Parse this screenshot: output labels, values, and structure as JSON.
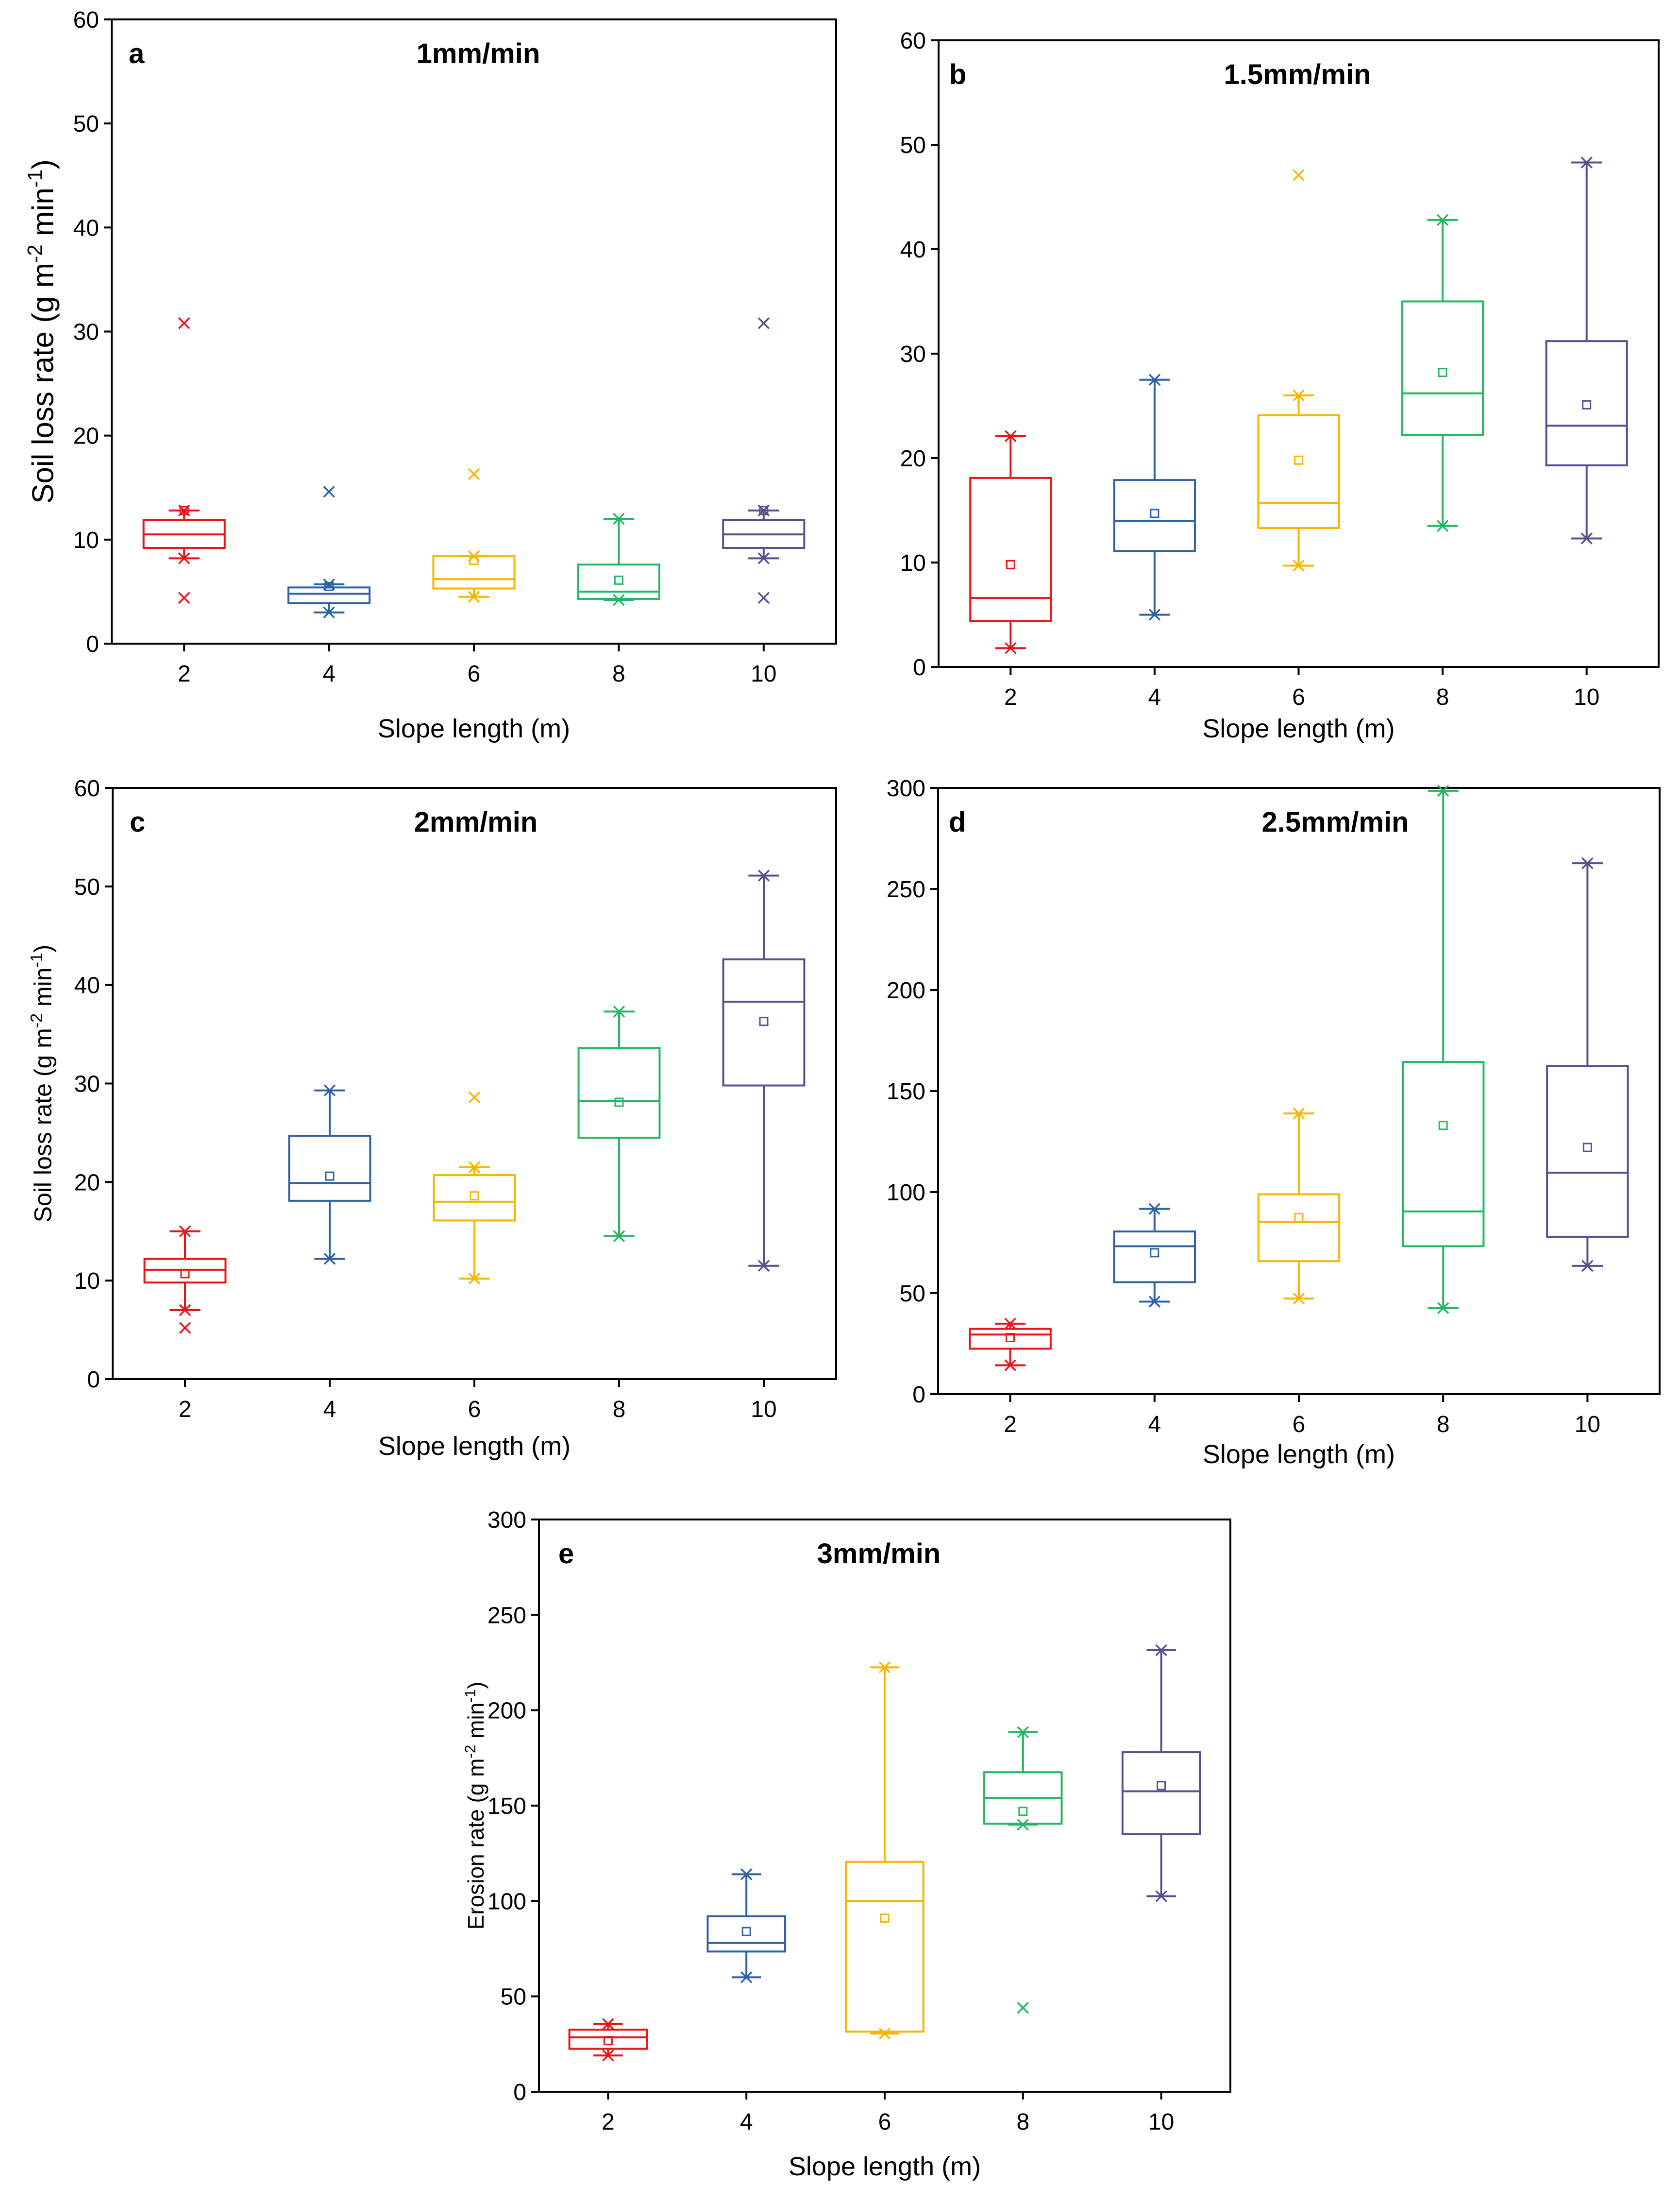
{
  "chart_data": [
    {
      "type": "box",
      "panel": "a",
      "title": "1mm/min",
      "xlabel": "Slope length (m)",
      "ylabel": {
        "main": "Soil loss rate (g m",
        "sup1": "-2",
        "mid": " min",
        "sup2": "-1",
        "end": ")"
      },
      "categories": [
        "2",
        "4",
        "6",
        "8",
        "10"
      ],
      "yticks": [
        "0",
        "10",
        "20",
        "30",
        "40",
        "50",
        "60"
      ],
      "ylim": [
        0,
        60
      ],
      "colors": [
        "#e8131b",
        "#2e62a4",
        "#f7b500",
        "#24b761",
        "#56508e"
      ],
      "boxes": [
        {
          "q1": 9.2,
          "median": 10.5,
          "q3": 11.9,
          "mean": 12.8,
          "whisker_low": 8.2,
          "whisker_high": 12.8,
          "outliers": [
            {
              "value": 30.8,
              "marker": "x"
            },
            {
              "value": 4.4,
              "marker": "x"
            }
          ]
        },
        {
          "q1": 3.9,
          "median": 4.8,
          "q3": 5.4,
          "mean": 5.5,
          "whisker_low": 3.0,
          "whisker_high": 5.7,
          "outliers": [
            {
              "value": 14.6,
              "marker": "x"
            }
          ]
        },
        {
          "q1": 5.3,
          "median": 6.2,
          "q3": 8.4,
          "mean": 8.0,
          "whisker_low": 4.5,
          "whisker_high": 8.4,
          "outliers": [
            {
              "value": 16.3,
              "marker": "x"
            }
          ]
        },
        {
          "q1": 4.3,
          "median": 5.0,
          "q3": 7.6,
          "mean": 6.1,
          "whisker_low": 4.2,
          "whisker_high": 12.0,
          "outliers": []
        },
        {
          "q1": 9.2,
          "median": 10.5,
          "q3": 11.9,
          "mean": 12.8,
          "whisker_low": 8.2,
          "whisker_high": 12.8,
          "outliers": [
            {
              "value": 30.8,
              "marker": "x"
            },
            {
              "value": 4.4,
              "marker": "x"
            }
          ]
        }
      ]
    },
    {
      "type": "box",
      "panel": "b",
      "title": "1.5mm/min",
      "xlabel": "Slope length (m)",
      "categories": [
        "2",
        "4",
        "6",
        "8",
        "10"
      ],
      "yticks": [
        "0",
        "10",
        "20",
        "30",
        "40",
        "50",
        "60"
      ],
      "ylim": [
        0,
        60
      ],
      "colors": [
        "#e8131b",
        "#2e62a4",
        "#f7b500",
        "#24b761",
        "#56508e"
      ],
      "boxes": [
        {
          "q1": 4.4,
          "median": 6.6,
          "q3": 18.1,
          "mean": 9.8,
          "whisker_low": 1.8,
          "whisker_high": 22.1,
          "outliers": []
        },
        {
          "q1": 11.1,
          "median": 14.0,
          "q3": 17.9,
          "mean": 14.7,
          "whisker_low": 5.0,
          "whisker_high": 27.5,
          "outliers": []
        },
        {
          "q1": 13.3,
          "median": 15.7,
          "q3": 24.1,
          "mean": 19.8,
          "whisker_low": 9.7,
          "whisker_high": 26.0,
          "outliers": [
            {
              "value": 47.1,
              "marker": "x"
            }
          ]
        },
        {
          "q1": 22.2,
          "median": 26.2,
          "q3": 35.0,
          "mean": 28.2,
          "whisker_low": 13.5,
          "whisker_high": 42.8,
          "outliers": []
        },
        {
          "q1": 19.3,
          "median": 23.1,
          "q3": 31.2,
          "mean": 25.1,
          "whisker_low": 12.3,
          "whisker_high": 48.3,
          "outliers": []
        }
      ]
    },
    {
      "type": "box",
      "panel": "c",
      "title": "2mm/min",
      "xlabel": "Slope length (m)",
      "ylabel": {
        "main": "Soil loss rate (g m",
        "sup1": "-2",
        "mid": " min",
        "sup2": "-1",
        "end": ")"
      },
      "categories": [
        "2",
        "4",
        "6",
        "8",
        "10"
      ],
      "yticks": [
        "0",
        "10",
        "20",
        "30",
        "40",
        "50",
        "60"
      ],
      "ylim": [
        0,
        60
      ],
      "colors": [
        "#e8131b",
        "#2e62a4",
        "#f7b500",
        "#24b761",
        "#56508e"
      ],
      "boxes": [
        {
          "q1": 9.8,
          "median": 11.1,
          "q3": 12.2,
          "mean": 10.7,
          "whisker_low": 7.0,
          "whisker_high": 15.0,
          "outliers": [
            {
              "value": 5.2,
              "marker": "x"
            }
          ]
        },
        {
          "q1": 18.1,
          "median": 19.9,
          "q3": 24.7,
          "mean": 20.6,
          "whisker_low": 12.2,
          "whisker_high": 29.3,
          "outliers": []
        },
        {
          "q1": 16.1,
          "median": 18.0,
          "q3": 20.7,
          "mean": 18.6,
          "whisker_low": 10.2,
          "whisker_high": 21.5,
          "outliers": [
            {
              "value": 28.6,
              "marker": "x"
            }
          ]
        },
        {
          "q1": 24.5,
          "median": 28.2,
          "q3": 33.6,
          "mean": 28.1,
          "whisker_low": 14.5,
          "whisker_high": 37.3,
          "outliers": []
        },
        {
          "q1": 29.8,
          "median": 38.3,
          "q3": 42.6,
          "mean": 36.3,
          "whisker_low": 11.5,
          "whisker_high": 51.1,
          "outliers": []
        }
      ]
    },
    {
      "type": "box",
      "panel": "d",
      "title": "2.5mm/min",
      "xlabel": "Slope length (m)",
      "categories": [
        "2",
        "4",
        "6",
        "8",
        "10"
      ],
      "yticks": [
        "0",
        "50",
        "100",
        "150",
        "200",
        "250",
        "300"
      ],
      "ylim": [
        0,
        300
      ],
      "colors": [
        "#e8131b",
        "#2e62a4",
        "#f7b500",
        "#24b761",
        "#56508e"
      ],
      "boxes": [
        {
          "q1": 22.5,
          "median": 29.5,
          "q3": 32.3,
          "mean": 28.0,
          "whisker_low": 14.3,
          "whisker_high": 34.9,
          "outliers": []
        },
        {
          "q1": 55.4,
          "median": 73.2,
          "q3": 80.5,
          "mean": 70.0,
          "whisker_low": 45.8,
          "whisker_high": 91.7,
          "outliers": []
        },
        {
          "q1": 65.8,
          "median": 85.2,
          "q3": 98.9,
          "mean": 87.4,
          "whisker_low": 47.3,
          "whisker_high": 138.9,
          "outliers": []
        },
        {
          "q1": 73.2,
          "median": 90.4,
          "q3": 164.4,
          "mean": 133.0,
          "whisker_low": 42.6,
          "whisker_high": 298.6,
          "outliers": []
        },
        {
          "q1": 77.9,
          "median": 109.6,
          "q3": 162.3,
          "mean": 122.1,
          "whisker_low": 63.5,
          "whisker_high": 262.7,
          "outliers": []
        }
      ]
    },
    {
      "type": "box",
      "panel": "e",
      "title": "3mm/min",
      "xlabel": "Slope length (m)",
      "ylabel": {
        "main": "Erosion rate (g m",
        "sup1": "-2",
        "mid": " min",
        "sup2": "-1",
        "end": ")"
      },
      "categories": [
        "2",
        "4",
        "6",
        "8",
        "10"
      ],
      "yticks": [
        "0",
        "50",
        "100",
        "150",
        "200",
        "250",
        "300"
      ],
      "ylim": [
        0,
        300
      ],
      "colors": [
        "#e8131b",
        "#2e62a4",
        "#f7b500",
        "#24b761",
        "#56508e"
      ],
      "boxes": [
        {
          "q1": 22.5,
          "median": 28.5,
          "q3": 32.5,
          "mean": 26.8,
          "whisker_low": 19.0,
          "whisker_high": 35.5,
          "outliers": []
        },
        {
          "q1": 73.5,
          "median": 78.0,
          "q3": 92.0,
          "mean": 84.0,
          "whisker_low": 60.0,
          "whisker_high": 114.0,
          "outliers": []
        },
        {
          "q1": 31.5,
          "median": 100.0,
          "q3": 120.5,
          "mean": 91.0,
          "whisker_low": 30.5,
          "whisker_high": 222.5,
          "outliers": []
        },
        {
          "q1": 140.5,
          "median": 154.0,
          "q3": 167.5,
          "mean": 147.0,
          "whisker_low": 140.0,
          "whisker_high": 188.5,
          "outliers": [
            {
              "value": 44.0,
              "marker": "x"
            }
          ]
        },
        {
          "q1": 135.0,
          "median": 157.5,
          "q3": 178.0,
          "mean": 160.5,
          "whisker_low": 102.5,
          "whisker_high": 231.5,
          "outliers": []
        }
      ]
    }
  ]
}
